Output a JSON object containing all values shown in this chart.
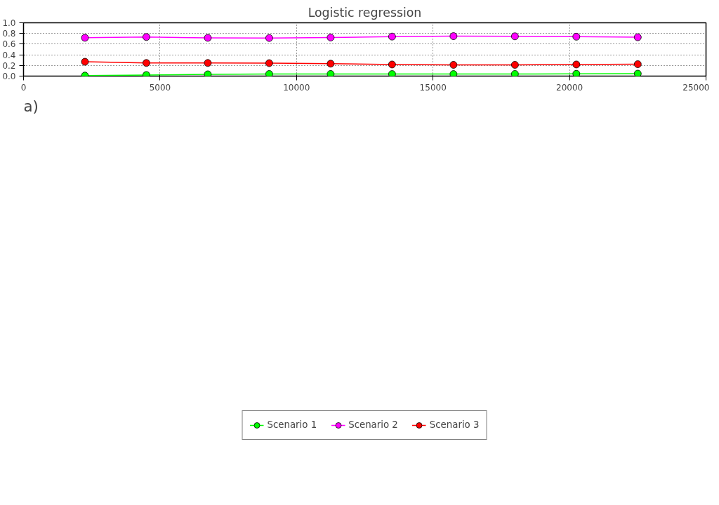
{
  "chart_data": {
    "type": "line",
    "title": "Logistic regression",
    "x": [
      2250,
      4500,
      6750,
      9000,
      11250,
      13500,
      15750,
      18000,
      20250,
      22500
    ],
    "series": [
      {
        "name": "Scenario 1",
        "color": "#00ff00",
        "values": [
          0.01,
          0.021,
          0.033,
          0.04,
          0.04,
          0.038,
          0.038,
          0.04,
          0.043,
          0.046
        ]
      },
      {
        "name": "Scenario 2",
        "color": "#ff00ff",
        "values": [
          0.719,
          0.733,
          0.718,
          0.715,
          0.724,
          0.741,
          0.749,
          0.746,
          0.739,
          0.729
        ]
      },
      {
        "name": "Scenario 3",
        "color": "#ff0000",
        "values": [
          0.269,
          0.246,
          0.246,
          0.243,
          0.233,
          0.218,
          0.211,
          0.211,
          0.218,
          0.223
        ]
      }
    ],
    "xlim": [
      0,
      25000
    ],
    "xticks": [
      0,
      5000,
      10000,
      15000,
      20000,
      25000
    ],
    "ylim": [
      0,
      1.0
    ],
    "yticks": [
      {
        "value": 0,
        "label": "0.0"
      },
      {
        "value": 0.2,
        "label": "0.2"
      },
      {
        "value": 0.4,
        "label": "0.4"
      },
      {
        "value": 0.6,
        "label": "0.6"
      },
      {
        "value": 0.8,
        "label": "0.8"
      },
      {
        "value": 1.0,
        "label": "1.0"
      }
    ],
    "grid": true,
    "legend": "bottom",
    "marker": "circle",
    "line_style": "solid",
    "annotations": [
      "a)"
    ]
  }
}
